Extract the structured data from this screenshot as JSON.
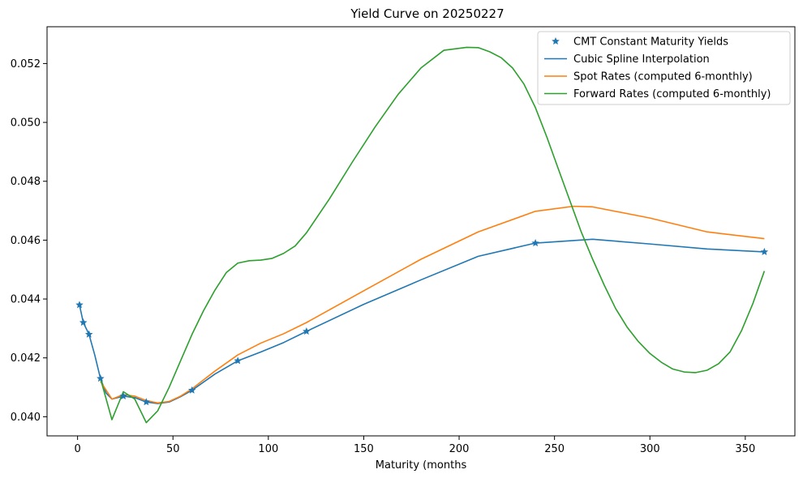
{
  "chart_data": {
    "type": "line",
    "title": "Yield Curve on 20250227",
    "xlabel": "Maturity (months",
    "ylabel": "",
    "xlim": [
      -16,
      376
    ],
    "ylim": [
      0.03935,
      0.05325
    ],
    "xticks": [
      0,
      50,
      100,
      150,
      200,
      250,
      300,
      350
    ],
    "yticks": [
      0.04,
      0.042,
      0.044,
      0.046,
      0.048,
      0.05,
      0.052
    ],
    "ytick_labels": [
      "0.040",
      "0.042",
      "0.044",
      "0.046",
      "0.048",
      "0.050",
      "0.052"
    ],
    "grid": false,
    "legend_position": "top-right",
    "series": [
      {
        "name": "CMT Constant Maturity Yields",
        "style": "markers",
        "color": "#1f77b4",
        "points": [
          [
            1,
            0.0438
          ],
          [
            3,
            0.0432
          ],
          [
            6,
            0.0428
          ],
          [
            12,
            0.0413
          ],
          [
            24,
            0.0407
          ],
          [
            36,
            0.0405
          ],
          [
            60,
            0.0409
          ],
          [
            84,
            0.0419
          ],
          [
            120,
            0.0429
          ],
          [
            240,
            0.0459
          ],
          [
            360,
            0.0456
          ]
        ]
      },
      {
        "name": "Cubic Spline Interpolation",
        "style": "line",
        "color": "#1f77b4",
        "points": [
          [
            1,
            0.0438
          ],
          [
            3,
            0.0432
          ],
          [
            6,
            0.0428
          ],
          [
            9,
            0.0421
          ],
          [
            12,
            0.0413
          ],
          [
            15,
            0.0408
          ],
          [
            18,
            0.0406
          ],
          [
            24,
            0.0407
          ],
          [
            30,
            0.04065
          ],
          [
            36,
            0.0405
          ],
          [
            42,
            0.04045
          ],
          [
            48,
            0.0405
          ],
          [
            54,
            0.04068
          ],
          [
            60,
            0.0409
          ],
          [
            72,
            0.04145
          ],
          [
            84,
            0.0419
          ],
          [
            96,
            0.0422
          ],
          [
            108,
            0.04252
          ],
          [
            120,
            0.0429
          ],
          [
            150,
            0.04382
          ],
          [
            180,
            0.04465
          ],
          [
            210,
            0.04545
          ],
          [
            240,
            0.0459
          ],
          [
            270,
            0.04603
          ],
          [
            300,
            0.04587
          ],
          [
            330,
            0.0457
          ],
          [
            360,
            0.0456
          ]
        ]
      },
      {
        "name": "Spot Rates (computed 6-monthly)",
        "style": "line",
        "color": "#ff7f0e",
        "points": [
          [
            12,
            0.0412
          ],
          [
            18,
            0.0406
          ],
          [
            24,
            0.04075
          ],
          [
            30,
            0.0407
          ],
          [
            36,
            0.04055
          ],
          [
            42,
            0.04047
          ],
          [
            48,
            0.04052
          ],
          [
            54,
            0.0407
          ],
          [
            60,
            0.04095
          ],
          [
            72,
            0.04155
          ],
          [
            84,
            0.0421
          ],
          [
            96,
            0.0425
          ],
          [
            108,
            0.04282
          ],
          [
            120,
            0.0432
          ],
          [
            150,
            0.04428
          ],
          [
            180,
            0.04535
          ],
          [
            210,
            0.04628
          ],
          [
            240,
            0.04698
          ],
          [
            260,
            0.04715
          ],
          [
            270,
            0.04713
          ],
          [
            300,
            0.04675
          ],
          [
            330,
            0.04628
          ],
          [
            360,
            0.04605
          ]
        ]
      },
      {
        "name": "Forward Rates (computed 6-monthly)",
        "style": "line",
        "color": "#2ca02c",
        "points": [
          [
            12,
            0.0413
          ],
          [
            18,
            0.0399
          ],
          [
            24,
            0.04085
          ],
          [
            30,
            0.0406
          ],
          [
            36,
            0.0398
          ],
          [
            42,
            0.0402
          ],
          [
            48,
            0.041
          ],
          [
            54,
            0.0419
          ],
          [
            60,
            0.0428
          ],
          [
            66,
            0.0436
          ],
          [
            72,
            0.0443
          ],
          [
            78,
            0.0449
          ],
          [
            84,
            0.04522
          ],
          [
            90,
            0.0453
          ],
          [
            96,
            0.04532
          ],
          [
            102,
            0.04538
          ],
          [
            108,
            0.04555
          ],
          [
            114,
            0.0458
          ],
          [
            120,
            0.04625
          ],
          [
            132,
            0.0474
          ],
          [
            144,
            0.04865
          ],
          [
            156,
            0.04985
          ],
          [
            168,
            0.05095
          ],
          [
            180,
            0.05185
          ],
          [
            192,
            0.05245
          ],
          [
            204,
            0.05255
          ],
          [
            210,
            0.05254
          ],
          [
            216,
            0.0524
          ],
          [
            222,
            0.0522
          ],
          [
            228,
            0.05185
          ],
          [
            234,
            0.0513
          ],
          [
            240,
            0.0505
          ],
          [
            246,
            0.0495
          ],
          [
            252,
            0.04842
          ],
          [
            258,
            0.04735
          ],
          [
            264,
            0.04628
          ],
          [
            270,
            0.04535
          ],
          [
            276,
            0.04448
          ],
          [
            282,
            0.04368
          ],
          [
            288,
            0.04305
          ],
          [
            294,
            0.04255
          ],
          [
            300,
            0.04215
          ],
          [
            306,
            0.04185
          ],
          [
            312,
            0.04162
          ],
          [
            318,
            0.04152
          ],
          [
            324,
            0.0415
          ],
          [
            330,
            0.04158
          ],
          [
            336,
            0.0418
          ],
          [
            342,
            0.0422
          ],
          [
            348,
            0.04292
          ],
          [
            354,
            0.04385
          ],
          [
            360,
            0.04495
          ]
        ]
      }
    ]
  }
}
